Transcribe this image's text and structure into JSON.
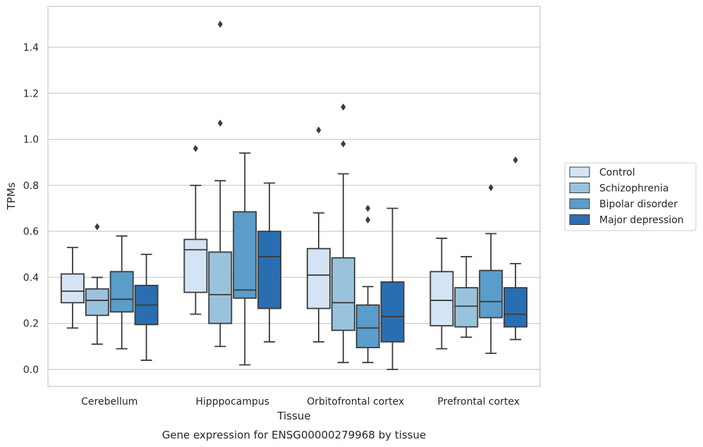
{
  "chart_data": {
    "type": "box",
    "title": "",
    "caption": "Gene expression for ENSG00000279968 by tissue",
    "xlabel": "Tissue",
    "ylabel": "TPMs",
    "ylim": [
      -0.07,
      1.58
    ],
    "yticks": [
      0.0,
      0.2,
      0.4,
      0.6,
      0.8,
      1.0,
      1.2,
      1.4
    ],
    "ytick_labels": [
      "0.0",
      "0.2",
      "0.4",
      "0.6",
      "0.8",
      "1.0",
      "1.2",
      "1.4"
    ],
    "grid": true,
    "legend_position": "right",
    "categories": [
      "Cerebellum",
      "Hipppocampus",
      "Orbitofrontal cortex",
      "Prefrontal cortex"
    ],
    "series": [
      {
        "name": "Control",
        "color": "#d4e4f4",
        "boxes": [
          {
            "min": 0.18,
            "q1": 0.29,
            "median": 0.34,
            "q3": 0.415,
            "max": 0.53,
            "outliers": []
          },
          {
            "min": 0.24,
            "q1": 0.335,
            "median": 0.52,
            "q3": 0.565,
            "max": 0.8,
            "outliers": [
              0.96
            ]
          },
          {
            "min": 0.12,
            "q1": 0.265,
            "median": 0.41,
            "q3": 0.525,
            "max": 0.68,
            "outliers": [
              1.04
            ]
          },
          {
            "min": 0.09,
            "q1": 0.19,
            "median": 0.3,
            "q3": 0.425,
            "max": 0.57,
            "outliers": []
          }
        ]
      },
      {
        "name": "Schizophrenia",
        "color": "#99c3dd",
        "boxes": [
          {
            "min": 0.11,
            "q1": 0.235,
            "median": 0.3,
            "q3": 0.35,
            "max": 0.4,
            "outliers": [
              0.62
            ]
          },
          {
            "min": 0.1,
            "q1": 0.2,
            "median": 0.325,
            "q3": 0.51,
            "max": 0.82,
            "outliers": [
              1.07,
              1.5
            ]
          },
          {
            "min": 0.03,
            "q1": 0.17,
            "median": 0.29,
            "q3": 0.485,
            "max": 0.85,
            "outliers": [
              0.98,
              1.14
            ]
          },
          {
            "min": 0.14,
            "q1": 0.185,
            "median": 0.275,
            "q3": 0.355,
            "max": 0.49,
            "outliers": []
          }
        ]
      },
      {
        "name": "Bipolar disorder",
        "color": "#5a9dca",
        "boxes": [
          {
            "min": 0.09,
            "q1": 0.25,
            "median": 0.305,
            "q3": 0.425,
            "max": 0.58,
            "outliers": []
          },
          {
            "min": 0.02,
            "q1": 0.31,
            "median": 0.345,
            "q3": 0.685,
            "max": 0.94,
            "outliers": []
          },
          {
            "min": 0.03,
            "q1": 0.095,
            "median": 0.18,
            "q3": 0.28,
            "max": 0.36,
            "outliers": [
              0.65,
              0.7
            ]
          },
          {
            "min": 0.07,
            "q1": 0.225,
            "median": 0.295,
            "q3": 0.43,
            "max": 0.59,
            "outliers": [
              0.79
            ]
          }
        ]
      },
      {
        "name": "Major depression",
        "color": "#2a6eb2",
        "boxes": [
          {
            "min": 0.04,
            "q1": 0.195,
            "median": 0.28,
            "q3": 0.365,
            "max": 0.5,
            "outliers": []
          },
          {
            "min": 0.12,
            "q1": 0.265,
            "median": 0.49,
            "q3": 0.6,
            "max": 0.81,
            "outliers": []
          },
          {
            "min": 0.0,
            "q1": 0.12,
            "median": 0.23,
            "q3": 0.38,
            "max": 0.7,
            "outliers": []
          },
          {
            "min": 0.13,
            "q1": 0.185,
            "median": 0.24,
            "q3": 0.355,
            "max": 0.46,
            "outliers": [
              0.91
            ]
          }
        ]
      }
    ]
  }
}
